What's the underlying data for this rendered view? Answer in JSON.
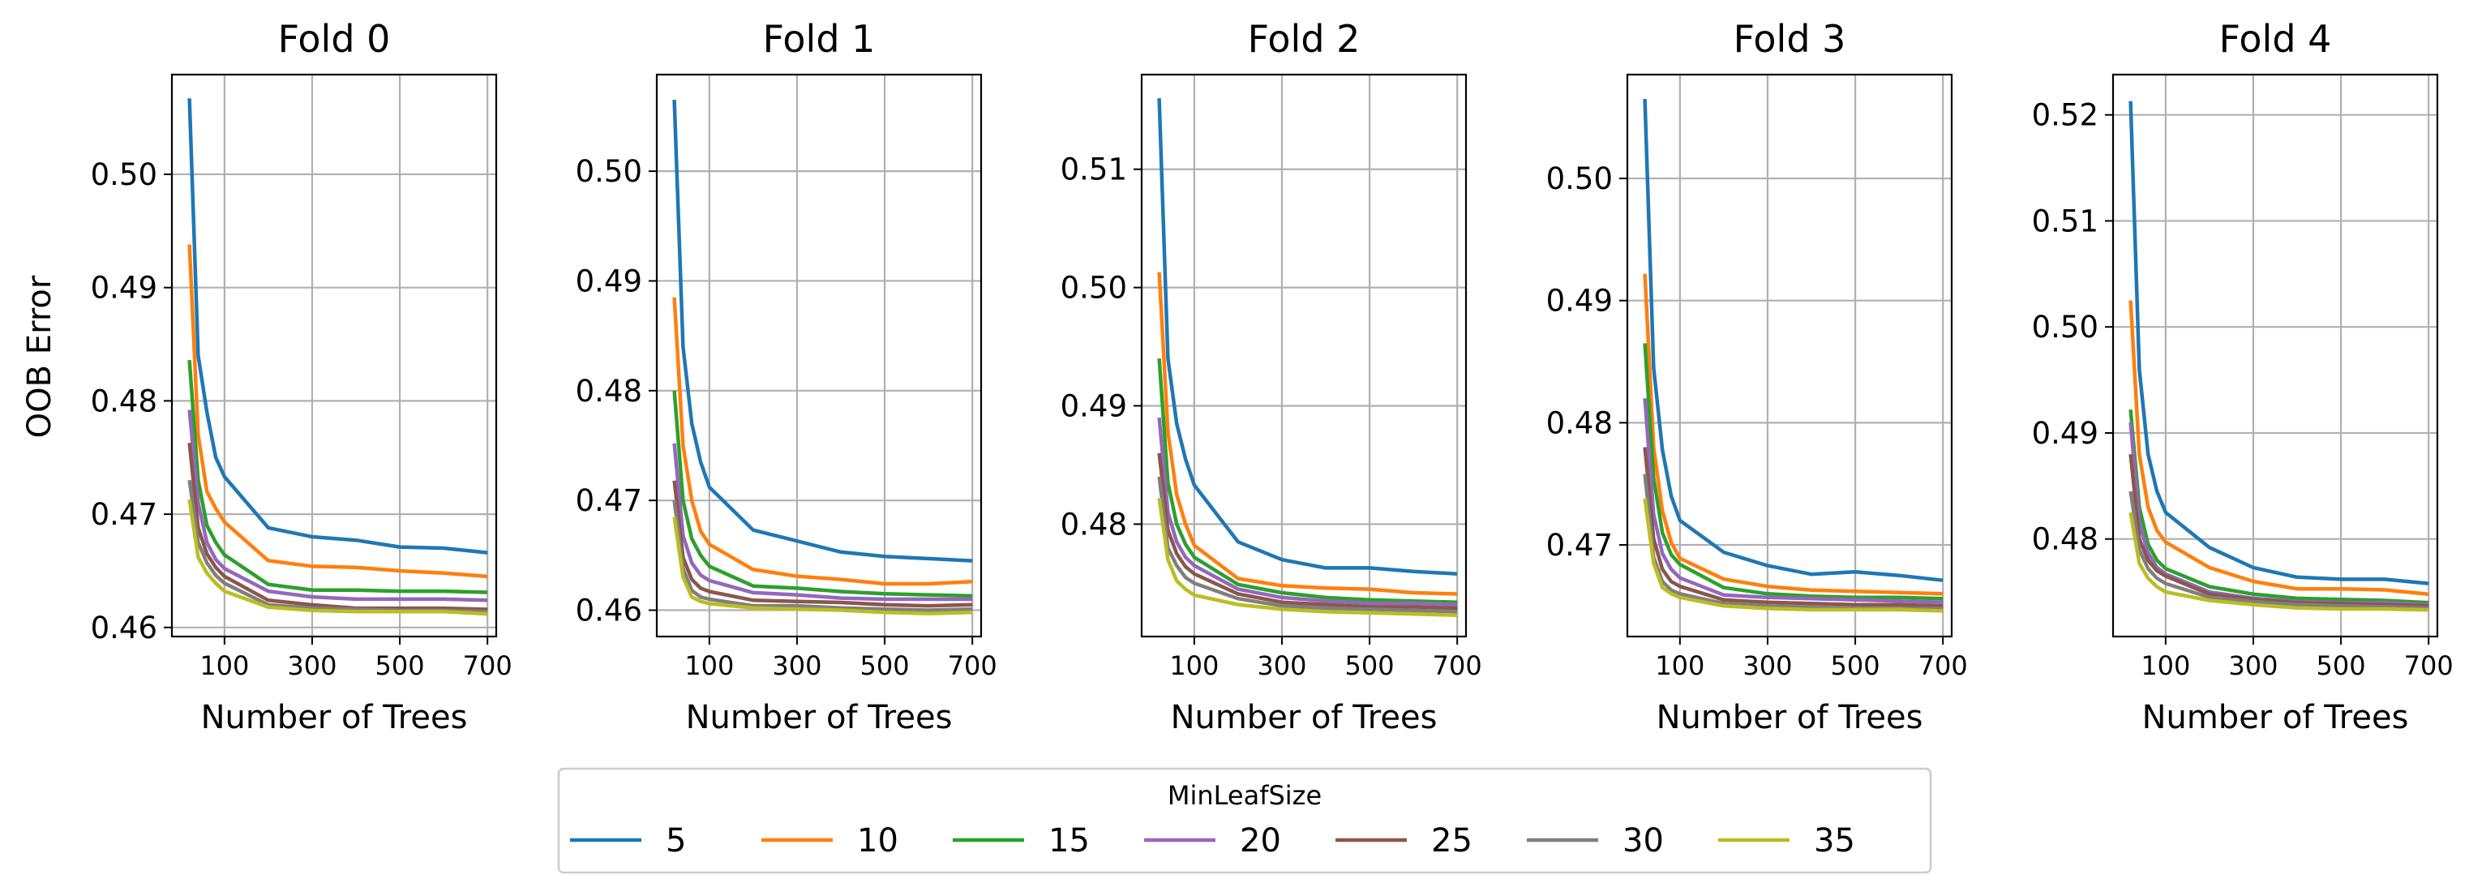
{
  "chart_data": {
    "type": "line",
    "shared_xlabel": "Number of Trees",
    "ylabel": "OOB Error",
    "xticks": [
      100,
      300,
      500,
      700
    ],
    "xlim": [
      -20,
      720
    ],
    "grid": true,
    "legend": {
      "title": "MinLeafSize",
      "placement": "bottom-center",
      "entries": [
        "5",
        "10",
        "15",
        "20",
        "25",
        "30",
        "35"
      ]
    },
    "series_colors": [
      "#1f77b4",
      "#ff7f0e",
      "#2ca02c",
      "#9467bd",
      "#8c564b",
      "#7f7f7f",
      "#bcbd22"
    ],
    "x": [
      20,
      40,
      60,
      80,
      100,
      200,
      300,
      400,
      500,
      600,
      700
    ],
    "panels": [
      {
        "title": "Fold 0",
        "ylim": [
          0.4592,
          0.5088
        ],
        "yticks": [
          "0.46",
          "0.47",
          "0.48",
          "0.49",
          "0.50"
        ],
        "series": [
          {
            "name": "5",
            "values": [
              0.5067,
              0.484,
              0.479,
              0.475,
              0.4733,
              0.4688,
              0.468,
              0.4677,
              0.4671,
              0.467,
              0.4666
            ]
          },
          {
            "name": "10",
            "values": [
              0.4938,
              0.477,
              0.472,
              0.4705,
              0.4693,
              0.4659,
              0.4654,
              0.4653,
              0.465,
              0.4648,
              0.4645
            ]
          },
          {
            "name": "15",
            "values": [
              0.4836,
              0.473,
              0.469,
              0.4675,
              0.4664,
              0.4638,
              0.4633,
              0.4633,
              0.4632,
              0.4632,
              0.4631
            ]
          },
          {
            "name": "20",
            "values": [
              0.4792,
              0.471,
              0.4675,
              0.466,
              0.4652,
              0.4632,
              0.4627,
              0.4625,
              0.4625,
              0.4625,
              0.4624
            ]
          },
          {
            "name": "25",
            "values": [
              0.4763,
              0.4688,
              0.4665,
              0.4653,
              0.4645,
              0.4624,
              0.462,
              0.4617,
              0.4617,
              0.4617,
              0.4616
            ]
          },
          {
            "name": "30",
            "values": [
              0.473,
              0.4675,
              0.4657,
              0.4646,
              0.4639,
              0.462,
              0.4617,
              0.4616,
              0.4615,
              0.4615,
              0.4614
            ]
          },
          {
            "name": "35",
            "values": [
              0.4713,
              0.4662,
              0.4648,
              0.4639,
              0.4632,
              0.4618,
              0.4615,
              0.4614,
              0.4614,
              0.4614,
              0.4612
            ]
          }
        ]
      },
      {
        "title": "Fold 1",
        "ylim": [
          0.4576,
          0.5088
        ],
        "yticks": [
          "0.46",
          "0.47",
          "0.48",
          "0.49",
          "0.50"
        ],
        "series": [
          {
            "name": "5",
            "values": [
              0.5065,
              0.484,
              0.477,
              0.4735,
              0.4712,
              0.4673,
              0.4663,
              0.4653,
              0.4649,
              0.4647,
              0.4645
            ]
          },
          {
            "name": "10",
            "values": [
              0.4885,
              0.475,
              0.47,
              0.4672,
              0.466,
              0.4637,
              0.4631,
              0.4628,
              0.4624,
              0.4624,
              0.4626
            ]
          },
          {
            "name": "15",
            "values": [
              0.48,
              0.47,
              0.4665,
              0.465,
              0.464,
              0.4622,
              0.462,
              0.4617,
              0.4615,
              0.4614,
              0.4613
            ]
          },
          {
            "name": "20",
            "values": [
              0.4752,
              0.4668,
              0.4643,
              0.4632,
              0.4627,
              0.4616,
              0.4614,
              0.4611,
              0.461,
              0.461,
              0.461
            ]
          },
          {
            "name": "25",
            "values": [
              0.4718,
              0.4648,
              0.4628,
              0.462,
              0.4617,
              0.4609,
              0.4608,
              0.4607,
              0.4605,
              0.4604,
              0.4605
            ]
          },
          {
            "name": "30",
            "values": [
              0.47,
              0.4638,
              0.4618,
              0.4612,
              0.461,
              0.4604,
              0.4604,
              0.4602,
              0.4601,
              0.46,
              0.4601
            ]
          },
          {
            "name": "35",
            "values": [
              0.4685,
              0.463,
              0.4612,
              0.4608,
              0.4606,
              0.4602,
              0.4601,
              0.46,
              0.4598,
              0.4597,
              0.4598
            ]
          }
        ]
      },
      {
        "title": "Fold 2",
        "ylim": [
          0.4705,
          0.518
        ],
        "yticks": [
          "0.48",
          "0.49",
          "0.50",
          "0.51"
        ],
        "series": [
          {
            "name": "5",
            "values": [
              0.516,
              0.494,
              0.4885,
              0.4855,
              0.4833,
              0.4785,
              0.477,
              0.4763,
              0.4763,
              0.476,
              0.4758
            ]
          },
          {
            "name": "10",
            "values": [
              0.5013,
              0.4878,
              0.4825,
              0.48,
              0.4782,
              0.4754,
              0.4748,
              0.4746,
              0.4745,
              0.4742,
              0.4741
            ]
          },
          {
            "name": "15",
            "values": [
              0.494,
              0.4835,
              0.48,
              0.4783,
              0.4772,
              0.4749,
              0.4742,
              0.4738,
              0.4736,
              0.4735,
              0.4734
            ]
          },
          {
            "name": "20",
            "values": [
              0.489,
              0.481,
              0.4785,
              0.4772,
              0.4765,
              0.4745,
              0.4738,
              0.4735,
              0.4733,
              0.4733,
              0.4732
            ]
          },
          {
            "name": "25",
            "values": [
              0.486,
              0.4795,
              0.4775,
              0.4764,
              0.4758,
              0.4741,
              0.4734,
              0.4732,
              0.473,
              0.473,
              0.4729
            ]
          },
          {
            "name": "30",
            "values": [
              0.484,
              0.478,
              0.4765,
              0.4755,
              0.475,
              0.4737,
              0.4731,
              0.4729,
              0.4728,
              0.4727,
              0.4726
            ]
          },
          {
            "name": "35",
            "values": [
              0.4822,
              0.477,
              0.4752,
              0.4745,
              0.474,
              0.4732,
              0.4728,
              0.4726,
              0.4725,
              0.4724,
              0.4723
            ]
          }
        ]
      },
      {
        "title": "Fold 3",
        "ylim": [
          0.4625,
          0.5085
        ],
        "yticks": [
          "0.47",
          "0.48",
          "0.49",
          "0.50"
        ],
        "series": [
          {
            "name": "5",
            "values": [
              0.5065,
              0.4845,
              0.4778,
              0.474,
              0.472,
              0.4694,
              0.4683,
              0.4676,
              0.4678,
              0.4675,
              0.4671
            ]
          },
          {
            "name": "10",
            "values": [
              0.4922,
              0.478,
              0.4728,
              0.4702,
              0.4689,
              0.4672,
              0.4666,
              0.4663,
              0.4662,
              0.4661,
              0.466
            ]
          },
          {
            "name": "15",
            "values": [
              0.4865,
              0.4755,
              0.471,
              0.4692,
              0.4684,
              0.4665,
              0.466,
              0.4658,
              0.4657,
              0.4657,
              0.4656
            ]
          },
          {
            "name": "20",
            "values": [
              0.482,
              0.4725,
              0.4693,
              0.468,
              0.4673,
              0.4659,
              0.4657,
              0.4656,
              0.4655,
              0.4654,
              0.4653
            ]
          },
          {
            "name": "25",
            "values": [
              0.478,
              0.4705,
              0.468,
              0.467,
              0.4666,
              0.4655,
              0.4653,
              0.4652,
              0.4651,
              0.4651,
              0.465
            ]
          },
          {
            "name": "30",
            "values": [
              0.4758,
              0.469,
              0.467,
              0.4663,
              0.466,
              0.4652,
              0.465,
              0.4649,
              0.4648,
              0.4648,
              0.4648
            ]
          },
          {
            "name": "35",
            "values": [
              0.4738,
              0.4685,
              0.4665,
              0.466,
              0.4657,
              0.465,
              0.4648,
              0.4647,
              0.4647,
              0.4647,
              0.4646
            ]
          }
        ]
      },
      {
        "title": "Fold 4",
        "ylim": [
          0.4708,
          0.5238
        ],
        "yticks": [
          "0.48",
          "0.49",
          "0.50",
          "0.51",
          "0.52"
        ],
        "series": [
          {
            "name": "5",
            "values": [
              0.5213,
              0.496,
              0.488,
              0.4845,
              0.4825,
              0.4792,
              0.4773,
              0.4764,
              0.4762,
              0.4762,
              0.4758
            ]
          },
          {
            "name": "10",
            "values": [
              0.5025,
              0.488,
              0.483,
              0.4808,
              0.4797,
              0.4773,
              0.476,
              0.4753,
              0.4753,
              0.4752,
              0.4748
            ]
          },
          {
            "name": "15",
            "values": [
              0.4922,
              0.483,
              0.4795,
              0.478,
              0.4772,
              0.4755,
              0.4748,
              0.4744,
              0.4743,
              0.4742,
              0.474
            ]
          },
          {
            "name": "20",
            "values": [
              0.491,
              0.4815,
              0.4787,
              0.4773,
              0.4767,
              0.475,
              0.4744,
              0.4741,
              0.474,
              0.474,
              0.4738
            ]
          },
          {
            "name": "25",
            "values": [
              0.488,
              0.48,
              0.478,
              0.477,
              0.4765,
              0.4748,
              0.4743,
              0.474,
              0.4739,
              0.4738,
              0.4737
            ]
          },
          {
            "name": "30",
            "values": [
              0.4845,
              0.479,
              0.4772,
              0.4763,
              0.4758,
              0.4745,
              0.4741,
              0.4738,
              0.4737,
              0.4736,
              0.4735
            ]
          },
          {
            "name": "35",
            "values": [
              0.4825,
              0.4777,
              0.4763,
              0.4755,
              0.475,
              0.4742,
              0.4738,
              0.4735,
              0.4734,
              0.4734,
              0.4733
            ]
          }
        ]
      }
    ]
  }
}
